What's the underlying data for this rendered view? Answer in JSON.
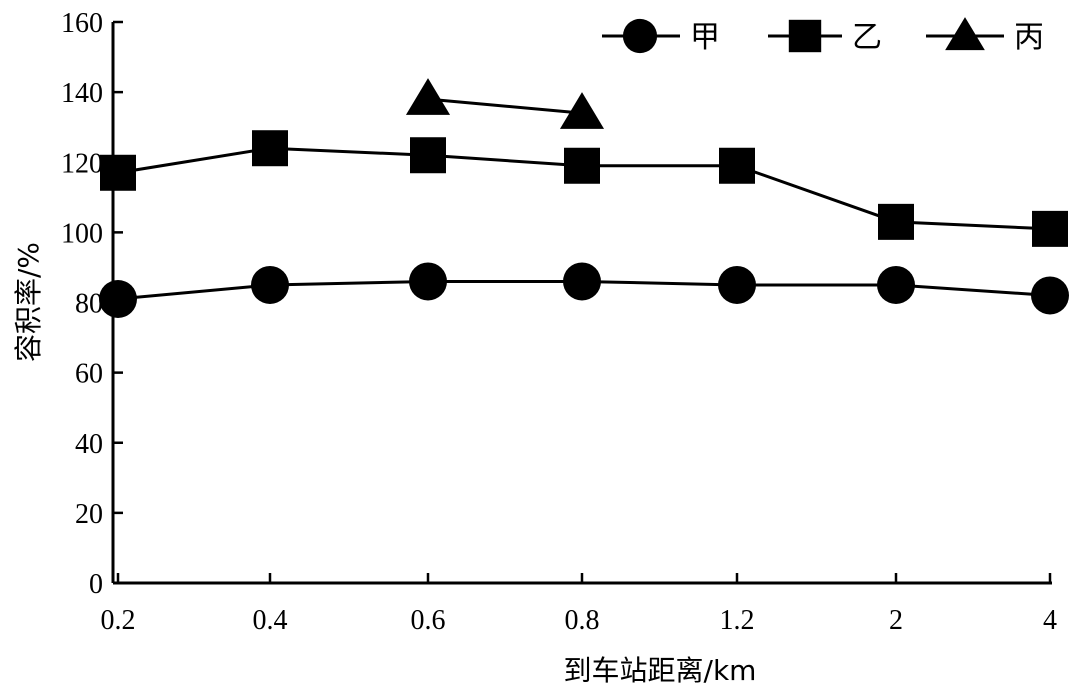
{
  "chart_data": {
    "type": "line",
    "xlabel": "到车站距离/km",
    "ylabel": "容积率/%",
    "categories": [
      "0.2",
      "0.4",
      "0.6",
      "0.8",
      "1.2",
      "2",
      "4"
    ],
    "y_ticks": [
      "0",
      "20",
      "40",
      "60",
      "80",
      "100",
      "120",
      "140",
      "160"
    ],
    "ylim": [
      0,
      160
    ],
    "grid": false,
    "legend_position": "top-right",
    "series": [
      {
        "name": "甲",
        "marker": "circle",
        "values": [
          81,
          85,
          86,
          86,
          85,
          85,
          82
        ]
      },
      {
        "name": "乙",
        "marker": "square",
        "values": [
          117,
          124,
          122,
          119,
          119,
          103,
          101
        ]
      },
      {
        "name": "丙",
        "marker": "triangle",
        "values": [
          null,
          null,
          138,
          134,
          null,
          null,
          null
        ]
      }
    ],
    "colors": {
      "line": "#000000",
      "marker": "#000000",
      "background": "#ffffff"
    }
  }
}
